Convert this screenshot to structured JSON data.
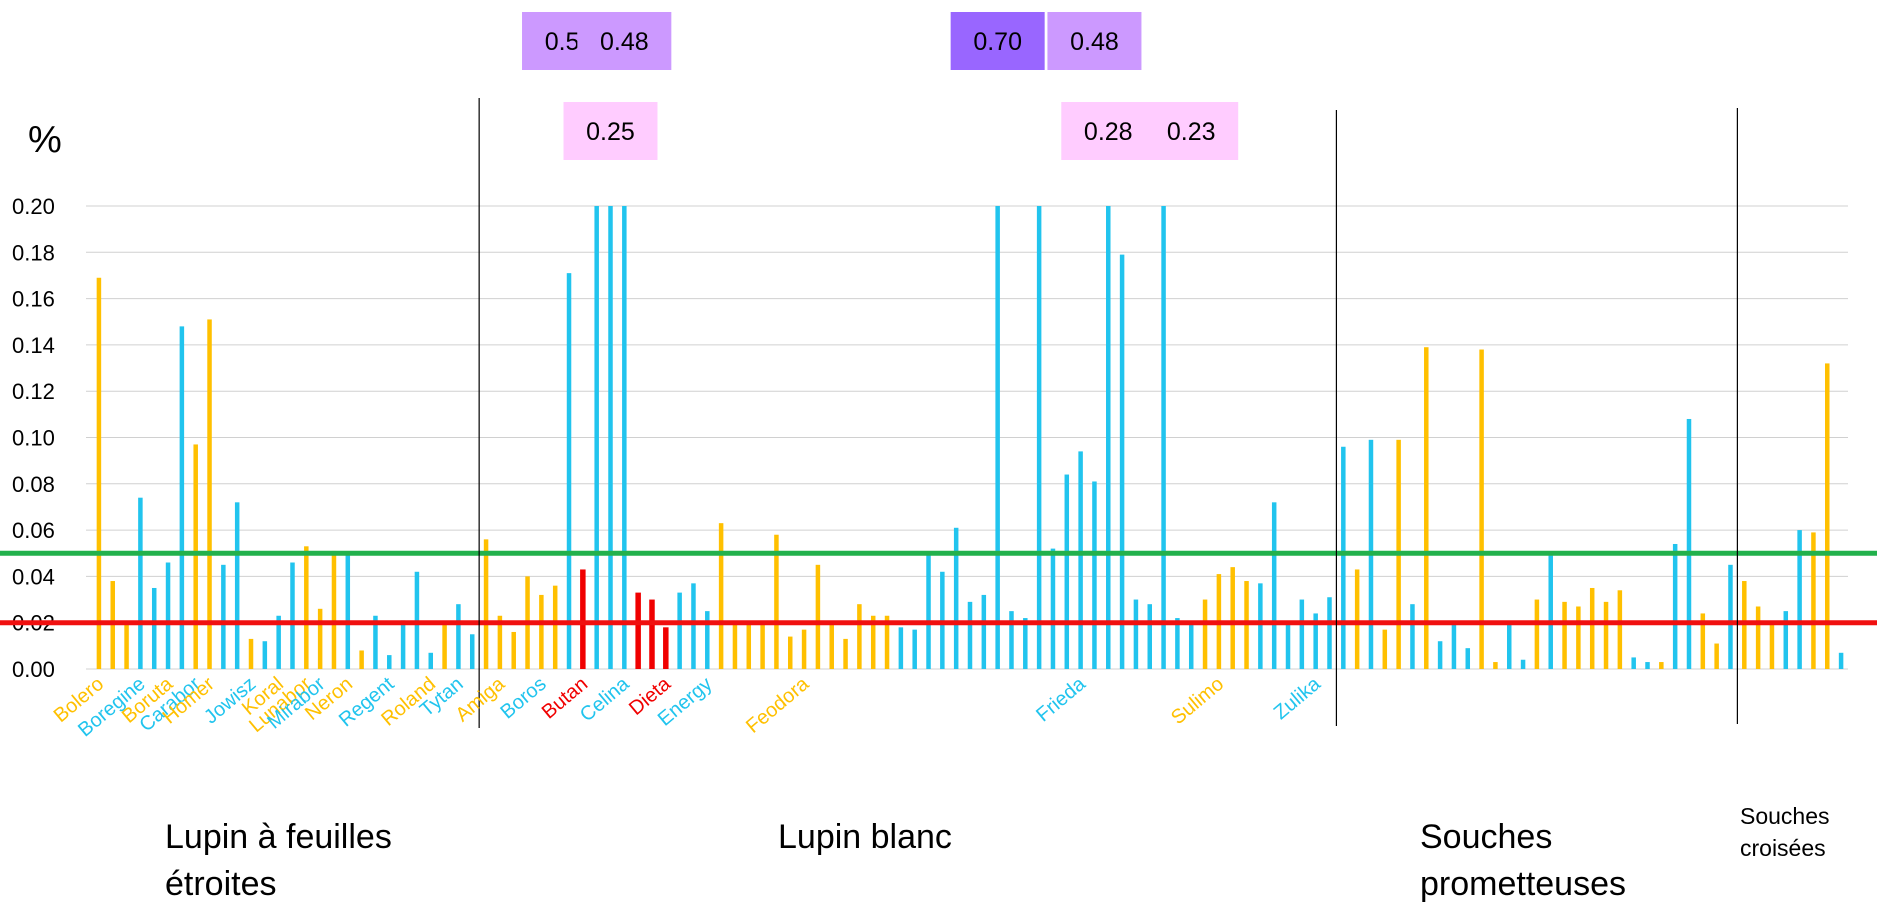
{
  "chart_data": {
    "type": "bar",
    "title": "",
    "ylabel": "%",
    "ylim": [
      0,
      0.2
    ],
    "y_ticks": [
      "0.00",
      "0.02",
      "0.04",
      "0.06",
      "0.08",
      "0.10",
      "0.12",
      "0.14",
      "0.16",
      "0.18",
      "0.20"
    ],
    "grid": true,
    "colors": {
      "orange": "#FFC000",
      "blue": "#21C4EE",
      "red": "#F00000",
      "green": "#22B14C",
      "threshold_red": "#F01010"
    },
    "values": [
      0.169,
      0.038,
      0.019,
      0.074,
      0.035,
      0.046,
      0.148,
      0.097,
      0.151,
      0.045,
      0.072,
      0.013,
      0.012,
      0.023,
      0.046,
      0.053,
      0.026,
      0.051,
      0.05,
      0.008,
      0.023,
      0.006,
      0.021,
      0.042,
      0.007,
      0.019,
      0.028,
      0.015,
      0.056,
      0.023,
      0.016,
      0.04,
      0.032,
      0.036,
      0.171,
      0.043,
      0.2,
      0.2,
      0.2,
      0.033,
      0.03,
      0.018,
      0.033,
      0.037,
      0.025,
      0.063,
      0.019,
      0.019,
      0.019,
      0.058,
      0.014,
      0.017,
      0.045,
      0.019,
      0.013,
      0.028,
      0.023,
      0.023,
      0.018,
      0.017,
      0.05,
      0.042,
      0.061,
      0.029,
      0.032,
      0.2,
      0.025,
      0.022,
      0.2,
      0.052,
      0.084,
      0.094,
      0.081,
      0.2,
      0.179,
      0.03,
      0.028,
      0.2,
      0.022,
      0.019,
      0.03,
      0.041,
      0.044,
      0.038,
      0.037,
      0.072,
      0.019,
      0.03,
      0.024,
      0.031,
      0.096,
      0.043,
      0.099,
      0.017,
      0.099,
      0.028,
      0.139,
      0.012,
      0.019,
      0.009,
      0.138,
      0.003,
      0.019,
      0.004,
      0.03,
      0.049,
      0.029,
      0.027,
      0.035,
      0.029,
      0.034,
      0.005,
      0.003,
      0.003,
      0.054,
      0.108,
      0.024,
      0.011,
      0.045,
      0.038,
      0.027,
      0.019,
      0.025,
      0.06,
      0.059,
      0.132,
      0.007
    ],
    "bar_colors": [
      "orange",
      "orange",
      "orange",
      "blue",
      "blue",
      "blue",
      "blue",
      "orange",
      "orange",
      "blue",
      "blue",
      "orange",
      "blue",
      "blue",
      "blue",
      "orange",
      "orange",
      "orange",
      "blue",
      "orange",
      "blue",
      "blue",
      "blue",
      "blue",
      "blue",
      "orange",
      "blue",
      "blue",
      "orange",
      "orange",
      "orange",
      "orange",
      "orange",
      "orange",
      "blue",
      "red",
      "blue",
      "blue",
      "blue",
      "red",
      "red",
      "red",
      "blue",
      "blue",
      "blue",
      "orange",
      "orange",
      "orange",
      "orange",
      "orange",
      "orange",
      "orange",
      "orange",
      "orange",
      "orange",
      "orange",
      "orange",
      "orange",
      "blue",
      "blue",
      "blue",
      "blue",
      "blue",
      "blue",
      "blue",
      "blue",
      "blue",
      "blue",
      "blue",
      "blue",
      "blue",
      "blue",
      "blue",
      "blue",
      "blue",
      "blue",
      "blue",
      "blue",
      "blue",
      "blue",
      "orange",
      "orange",
      "orange",
      "orange",
      "blue",
      "blue",
      "blue",
      "blue",
      "blue",
      "blue",
      "blue",
      "orange",
      "blue",
      "orange",
      "orange",
      "blue",
      "orange",
      "blue",
      "blue",
      "blue",
      "orange",
      "orange",
      "blue",
      "blue",
      "orange",
      "blue",
      "orange",
      "orange",
      "orange",
      "orange",
      "orange",
      "blue",
      "blue",
      "orange",
      "blue",
      "blue",
      "orange",
      "orange",
      "blue",
      "orange",
      "orange",
      "orange",
      "blue",
      "blue",
      "orange",
      "orange",
      "blue"
    ],
    "thresholds": [
      {
        "value": 0.05,
        "color": "green"
      },
      {
        "value": 0.02,
        "color": "threshold_red"
      }
    ],
    "category_labels": [
      {
        "text": "Bolero",
        "bar": 0,
        "color": "orange"
      },
      {
        "text": "Boregine",
        "bar": 3,
        "color": "blue"
      },
      {
        "text": "Boruta",
        "bar": 5,
        "color": "orange"
      },
      {
        "text": "Carabor",
        "bar": 7,
        "color": "blue"
      },
      {
        "text": "Homer",
        "bar": 8,
        "color": "orange"
      },
      {
        "text": "Jowisz",
        "bar": 11,
        "color": "blue"
      },
      {
        "text": "Koral",
        "bar": 13,
        "color": "orange"
      },
      {
        "text": "Lunabor",
        "bar": 15,
        "color": "orange"
      },
      {
        "text": "Mirabor",
        "bar": 16,
        "color": "blue"
      },
      {
        "text": "Neron",
        "bar": 18,
        "color": "orange"
      },
      {
        "text": "Regent",
        "bar": 21,
        "color": "blue"
      },
      {
        "text": "Roland",
        "bar": 24,
        "color": "orange"
      },
      {
        "text": "Tytan",
        "bar": 26,
        "color": "blue"
      },
      {
        "text": "Amiga",
        "bar": 29,
        "color": "orange"
      },
      {
        "text": "Boros",
        "bar": 32,
        "color": "blue"
      },
      {
        "text": "Butan",
        "bar": 35,
        "color": "red"
      },
      {
        "text": "Celina",
        "bar": 38,
        "color": "blue"
      },
      {
        "text": "Dieta",
        "bar": 41,
        "color": "red"
      },
      {
        "text": "Energy",
        "bar": 44,
        "color": "blue"
      },
      {
        "text": "Feodora",
        "bar": 51,
        "color": "orange"
      },
      {
        "text": "Frieda",
        "bar": 71,
        "color": "blue"
      },
      {
        "text": "Sulimo",
        "bar": 81,
        "color": "orange"
      },
      {
        "text": "Zulika",
        "bar": 88,
        "color": "blue"
      }
    ],
    "overflow_labels": [
      {
        "text": "0.50",
        "bar": 34,
        "row": 1,
        "color": "#CC99FF"
      },
      {
        "text": "0.48",
        "bar": 38,
        "row": 1,
        "color": "#CC99FF"
      },
      {
        "text": "0.25",
        "bar": 37,
        "row": 2,
        "color": "#FFCCFF"
      },
      {
        "text": "0.70",
        "bar": 65,
        "row": 1,
        "color": "#9966FF"
      },
      {
        "text": "0.48",
        "bar": 72,
        "row": 1,
        "color": "#CC99FF"
      },
      {
        "text": "0.28",
        "bar": 73,
        "row": 2,
        "color": "#FFCCFF"
      },
      {
        "text": "0.23",
        "bar": 79,
        "row": 2,
        "color": "#FFCCFF"
      }
    ],
    "group_dividers_after_bar": [
      27,
      89,
      118
    ],
    "groups": [
      {
        "lines": [
          "Lupin à feuilles",
          "étroites"
        ],
        "size": "large"
      },
      {
        "lines": [
          "Lupin blanc"
        ],
        "size": "large"
      },
      {
        "lines": [
          "Souches",
          "prometteuses"
        ],
        "size": "large"
      },
      {
        "lines": [
          "Souches",
          "croisées"
        ],
        "size": "small"
      }
    ]
  }
}
